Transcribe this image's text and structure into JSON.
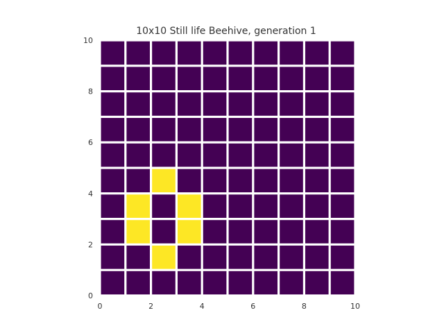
{
  "title": "10x10 Still life Beehive, generation 1",
  "colors": {
    "dead": "#440154",
    "alive": "#fde725",
    "grid_line": "#ffffff",
    "text": "#333333"
  },
  "chart_data": {
    "type": "heatmap",
    "title": "10x10 Still life Beehive, generation 1",
    "rows": 10,
    "cols": 10,
    "xlim": [
      0,
      10
    ],
    "ylim": [
      0,
      10
    ],
    "x_ticks": [
      0,
      2,
      4,
      6,
      8,
      10
    ],
    "y_ticks": [
      0,
      2,
      4,
      6,
      8,
      10
    ],
    "x_tick_labels": [
      "0",
      "2",
      "4",
      "6",
      "8",
      "10"
    ],
    "y_tick_labels": [
      "0",
      "2",
      "4",
      "6",
      "8",
      "10"
    ],
    "grid": true,
    "cells_top_to_bottom": [
      [
        0,
        0,
        0,
        0,
        0,
        0,
        0,
        0,
        0,
        0
      ],
      [
        0,
        0,
        0,
        0,
        0,
        0,
        0,
        0,
        0,
        0
      ],
      [
        0,
        0,
        0,
        0,
        0,
        0,
        0,
        0,
        0,
        0
      ],
      [
        0,
        0,
        0,
        0,
        0,
        0,
        0,
        0,
        0,
        0
      ],
      [
        0,
        0,
        0,
        0,
        0,
        0,
        0,
        0,
        0,
        0
      ],
      [
        0,
        0,
        1,
        0,
        0,
        0,
        0,
        0,
        0,
        0
      ],
      [
        0,
        1,
        0,
        1,
        0,
        0,
        0,
        0,
        0,
        0
      ],
      [
        0,
        1,
        0,
        1,
        0,
        0,
        0,
        0,
        0,
        0
      ],
      [
        0,
        0,
        1,
        0,
        0,
        0,
        0,
        0,
        0,
        0
      ],
      [
        0,
        0,
        0,
        0,
        0,
        0,
        0,
        0,
        0,
        0
      ]
    ]
  }
}
